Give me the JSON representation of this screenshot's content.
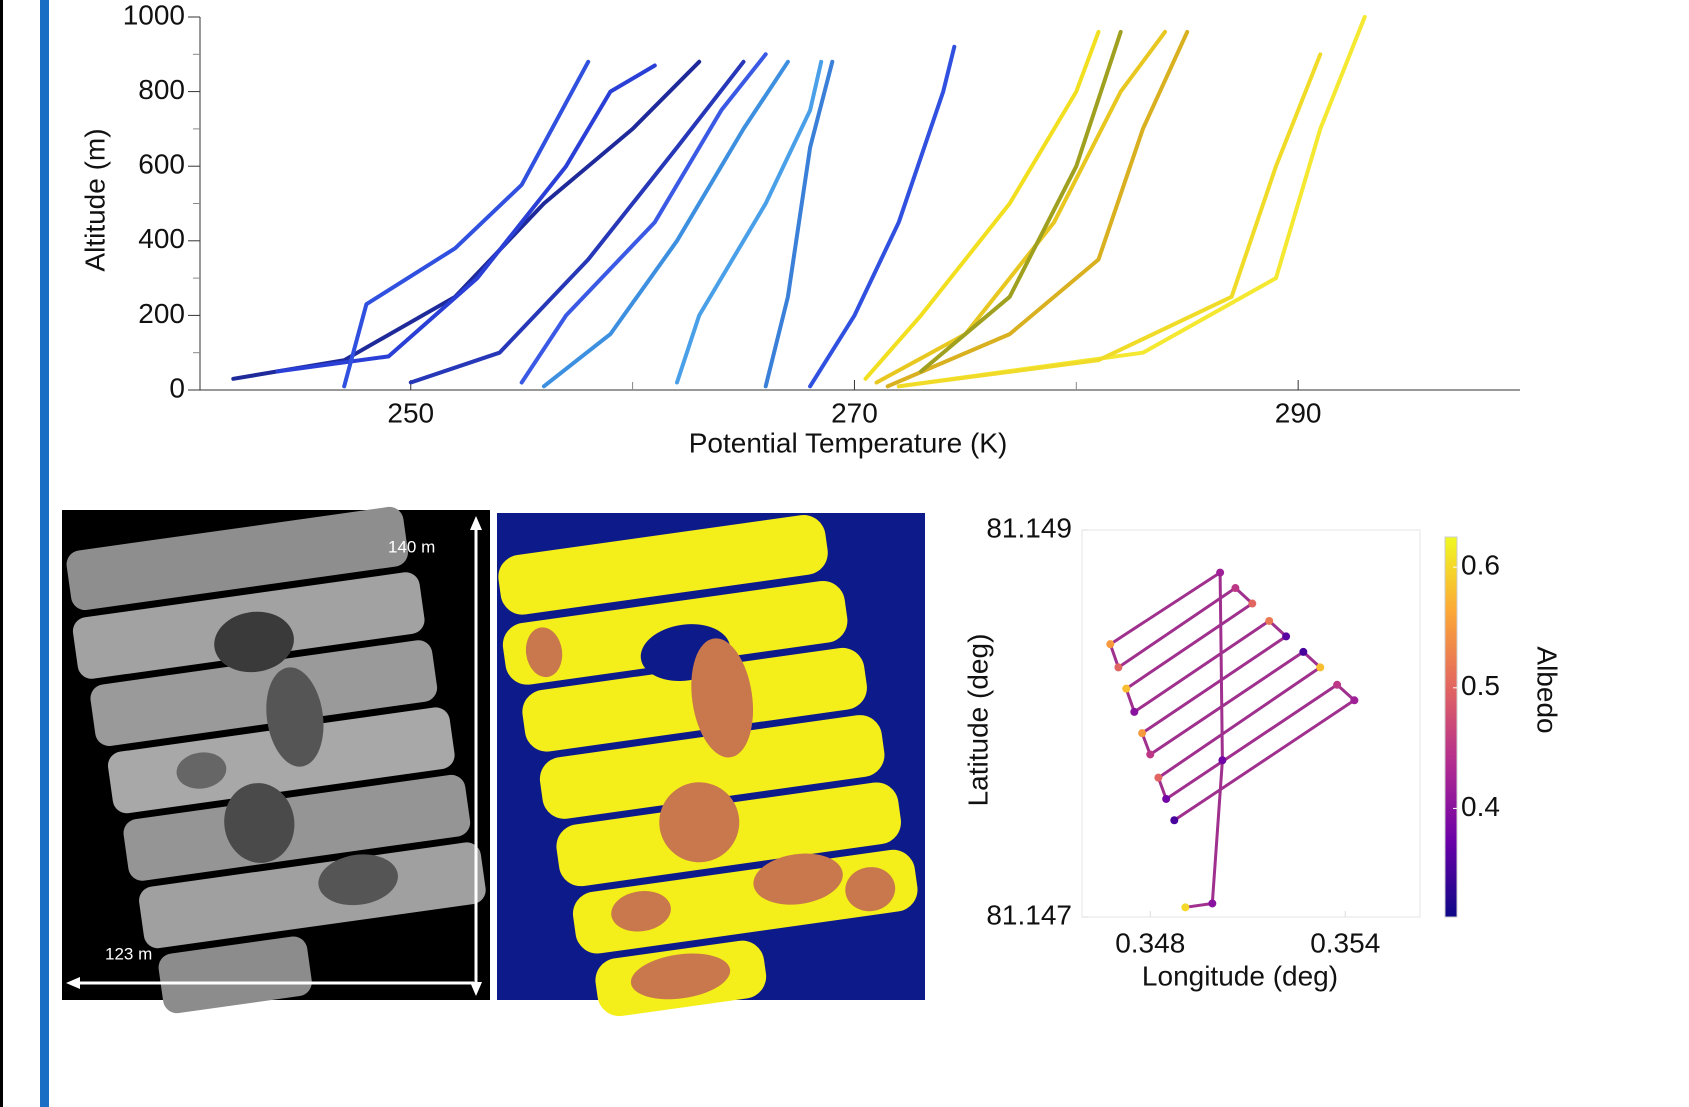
{
  "chart_data": [
    {
      "type": "line",
      "xlabel": "Potential Temperature (K)",
      "ylabel": "Altitude (m)",
      "xlim": [
        240.5,
        300
      ],
      "ylim": [
        0,
        1000
      ],
      "xticks": [
        250,
        270,
        290
      ],
      "xminorticks": [
        260,
        280
      ],
      "yticks": [
        0,
        200,
        400,
        600,
        800,
        1000
      ],
      "yminorticks": [
        100,
        300,
        500,
        700,
        900
      ],
      "series": [
        {
          "color": "#1f2a9a",
          "x": [
            242,
            247,
            252,
            256,
            260,
            263
          ],
          "values": [
            30,
            80,
            250,
            500,
            700,
            880
          ]
        },
        {
          "color": "#2a3fd6",
          "x": [
            244,
            249,
            253,
            257,
            259,
            261
          ],
          "values": [
            50,
            90,
            300,
            600,
            800,
            870
          ]
        },
        {
          "color": "#3050e0",
          "x": [
            247,
            248,
            252,
            255,
            258
          ],
          "values": [
            10,
            230,
            380,
            550,
            880
          ]
        },
        {
          "color": "#2637b8",
          "x": [
            250,
            254,
            258,
            262,
            265
          ],
          "values": [
            20,
            100,
            350,
            650,
            880
          ]
        },
        {
          "color": "#3a5ae6",
          "x": [
            255,
            257,
            261,
            264,
            266
          ],
          "values": [
            20,
            200,
            450,
            750,
            900
          ]
        },
        {
          "color": "#3d8fe0",
          "x": [
            256,
            259,
            262,
            265,
            267
          ],
          "values": [
            10,
            150,
            400,
            700,
            880
          ]
        },
        {
          "color": "#4aa0e8",
          "x": [
            262,
            263,
            266,
            268,
            268.5
          ],
          "values": [
            20,
            200,
            500,
            750,
            880
          ]
        },
        {
          "color": "#3a7fd8",
          "x": [
            266,
            267,
            268,
            269
          ],
          "values": [
            10,
            250,
            650,
            880
          ]
        },
        {
          "color": "#3050e0",
          "x": [
            268,
            270,
            272,
            274,
            274.5
          ],
          "values": [
            10,
            200,
            450,
            800,
            920
          ]
        },
        {
          "color": "#f2e020",
          "x": [
            270.5,
            273,
            277,
            280,
            281
          ],
          "values": [
            30,
            200,
            500,
            800,
            960
          ]
        },
        {
          "color": "#e8c820",
          "x": [
            271,
            275,
            279,
            282,
            284
          ],
          "values": [
            20,
            150,
            450,
            800,
            960
          ]
        },
        {
          "color": "#d8b020",
          "x": [
            271.5,
            277,
            281,
            283,
            285
          ],
          "values": [
            10,
            150,
            350,
            700,
            960
          ]
        },
        {
          "color": "#f5e830",
          "x": [
            272,
            283,
            289,
            291,
            293
          ],
          "values": [
            10,
            100,
            300,
            700,
            1000
          ]
        },
        {
          "color": "#f0dc28",
          "x": [
            272,
            281,
            287,
            289,
            291
          ],
          "values": [
            10,
            80,
            250,
            600,
            900
          ]
        },
        {
          "color": "#a0a020",
          "x": [
            273,
            277,
            280,
            282
          ],
          "values": [
            50,
            250,
            600,
            960
          ]
        }
      ]
    },
    {
      "type": "track",
      "xlabel": "Longitude (deg)",
      "ylabel": "Latitude (deg)",
      "xlim": [
        0.3459,
        0.3563
      ],
      "ylim": [
        81.147,
        81.149
      ],
      "xticks": [
        0.348,
        0.354
      ],
      "yticks": [
        81.147,
        81.149
      ],
      "x": [
        0.34908,
        0.34991,
        0.35022,
        0.35015,
        0.34677,
        0.34702,
        0.35062,
        0.35114,
        0.34726,
        0.34751,
        0.35166,
        0.35218,
        0.34775,
        0.348,
        0.35271,
        0.35323,
        0.34825,
        0.34849,
        0.35375,
        0.35428,
        0.34874
      ],
      "values": [
        81.14705,
        81.14707,
        81.14781,
        81.14878,
        81.14841,
        81.14829,
        81.1487,
        81.14862,
        81.14818,
        81.14806,
        81.14853,
        81.14845,
        81.14795,
        81.14784,
        81.14837,
        81.14829,
        81.14772,
        81.14761,
        81.1482,
        81.14812,
        81.1475
      ],
      "color_values": [
        0.6,
        0.4,
        0.38,
        0.42,
        0.55,
        0.5,
        0.45,
        0.5,
        0.58,
        0.4,
        0.52,
        0.36,
        0.55,
        0.45,
        0.35,
        0.58,
        0.5,
        0.38,
        0.45,
        0.42,
        0.35
      ],
      "colorbar": {
        "label": "Albedo",
        "lim": [
          0.31,
          0.625
        ],
        "ticks": [
          0.4,
          0.5,
          0.6
        ],
        "colormap": [
          "#0d0887",
          "#6a00a8",
          "#b12a90",
          "#e16462",
          "#fca636",
          "#f0f921"
        ]
      }
    }
  ],
  "annotations": {
    "vertical_extent": "140 m",
    "horizontal_extent": "123 m"
  }
}
